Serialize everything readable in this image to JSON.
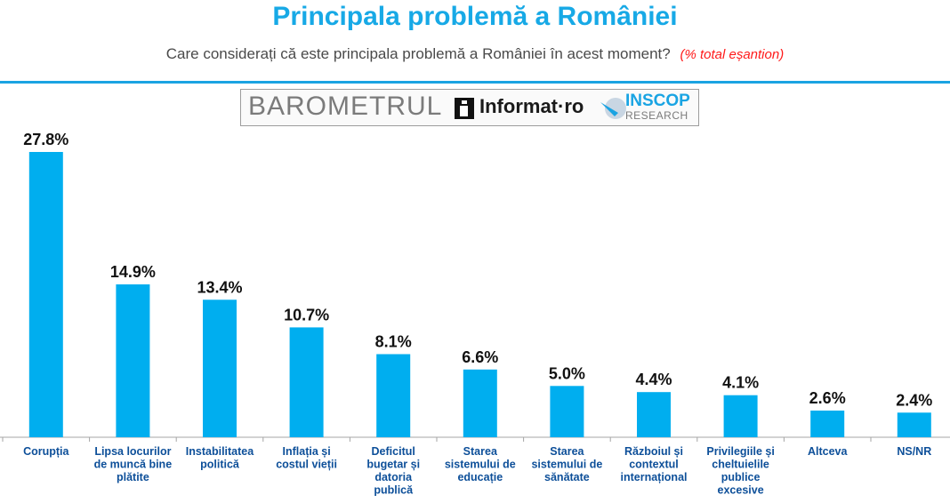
{
  "header": {
    "title": "Principala problemă a României",
    "subtitle": "Care considerați că este principala problemă a României în acest moment?",
    "subtitle_note": "(% total eșantion)"
  },
  "logos": {
    "barometrul": "BAROMETRUL",
    "informat": "Informat",
    "informat_dot": "·ro",
    "inscop": "INSCOP",
    "research": "RESEARCH"
  },
  "colors": {
    "bar": "#00aeef",
    "title": "#17a9e6",
    "category_text": "#0d4f99",
    "note": "#ff1a1a"
  },
  "chart_data": {
    "type": "bar",
    "categories": [
      [
        "Corupția"
      ],
      [
        "Lipsa locurilor",
        "de muncă bine",
        "plătite"
      ],
      [
        "Instabilitatea",
        "politică"
      ],
      [
        "Inflația și",
        "costul vieții"
      ],
      [
        "Deficitul",
        "bugetar și",
        "datoria",
        "publică"
      ],
      [
        "Starea",
        "sistemului de",
        "educație"
      ],
      [
        "Starea",
        "sistemului de",
        "sănătate"
      ],
      [
        "Războiul și",
        "contextul",
        "internațional"
      ],
      [
        "Privilegiile și",
        "cheltuielile",
        "publice",
        "excesive"
      ],
      [
        "Altceva"
      ],
      [
        "NS/NR"
      ]
    ],
    "values": [
      27.8,
      14.9,
      13.4,
      10.7,
      8.1,
      6.6,
      5.0,
      4.4,
      4.1,
      2.6,
      2.4
    ],
    "value_labels": [
      "27.8%",
      "14.9%",
      "13.4%",
      "10.7%",
      "8.1%",
      "6.6%",
      "5.0%",
      "4.4%",
      "4.1%",
      "2.6%",
      "2.4%"
    ],
    "unit": "%",
    "ylim": [
      0,
      30
    ],
    "grid": false,
    "legend": "none"
  }
}
